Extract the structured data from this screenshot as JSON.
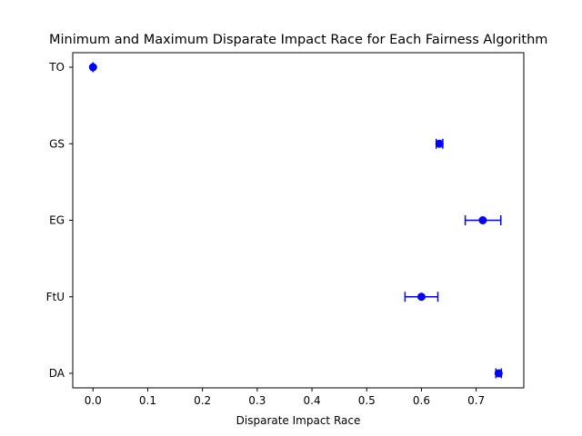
{
  "chart_data": {
    "type": "scatter",
    "title": "Minimum and Maximum Disparate Impact Race for Each Fairness Algorithm",
    "xlabel": "Disparate Impact Race",
    "ylabel": "",
    "xlim": [
      -0.037,
      0.787
    ],
    "x_ticks": [
      "0.0",
      "0.1",
      "0.2",
      "0.3",
      "0.4",
      "0.5",
      "0.6",
      "0.7"
    ],
    "categories": [
      "DA",
      "FtU",
      "EG",
      "GS",
      "TO"
    ],
    "grid": false,
    "marker_color": "#0000ff",
    "points": [
      {
        "category": "DA",
        "value": 0.741,
        "min": 0.736,
        "max": 0.746
      },
      {
        "category": "FtU",
        "value": 0.6,
        "min": 0.57,
        "max": 0.63
      },
      {
        "category": "EG",
        "value": 0.712,
        "min": 0.68,
        "max": 0.745
      },
      {
        "category": "GS",
        "value": 0.633,
        "min": 0.627,
        "max": 0.639
      },
      {
        "category": "TO",
        "value": 0.0,
        "min": 0.0,
        "max": 0.0
      }
    ]
  }
}
